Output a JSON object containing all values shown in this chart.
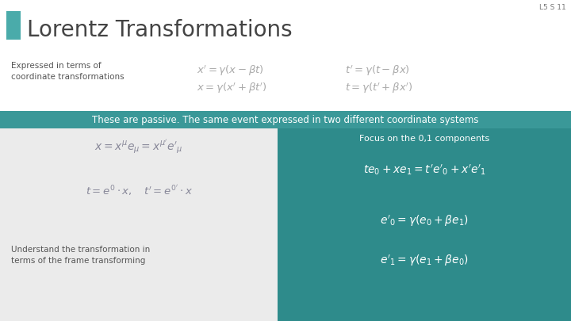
{
  "slide_label": "L5 S 11",
  "title": "Lorentz Transformations",
  "title_square_color": "#4aabaa",
  "background_color": "#ffffff",
  "teal_bar_color": "#3a9898",
  "teal_panel_color": "#2e8b8b",
  "left_panel_color": "#ebebeb",
  "bar_text": "These are passive. The same event expressed in two different coordinate systems",
  "subtitle_left": "Expressed in terms of\ncoordinate transformations",
  "eq1a": "$x' = \\gamma(x - \\beta t)$",
  "eq1b": "$t' = \\gamma(t - \\beta x)$",
  "eq2a": "$x = \\gamma(x' + \\beta t')$",
  "eq2b": "$t = \\gamma(t' + \\beta x')$",
  "left_eq1": "$x = x^{\\mu} e_{\\mu} = x^{\\mu'} e'_{\\mu}$",
  "left_eq2": "$t = e^0 \\cdot x, \\quad t' = e^{0'} \\cdot x$",
  "left_text": "Understand the transformation in\nterms of the frame transforming",
  "right_focus": "Focus on the 0,1 components",
  "right_eq1": "$te_0 + xe_1 = t'e'_0 + x'e'_1$",
  "right_eq2": "$e'_0 = \\gamma(e_0 + \\beta e_1)$",
  "right_eq3": "$e'_1 = \\gamma(e_1 + \\beta e_0)$",
  "title_color": "#444444",
  "subtitle_color": "#555555",
  "eq_color_top": "#aaaaaa",
  "eq_color_left": "#888899",
  "bar_text_color": "#ffffff",
  "right_text_color": "#ffffff",
  "label_color": "#777777"
}
